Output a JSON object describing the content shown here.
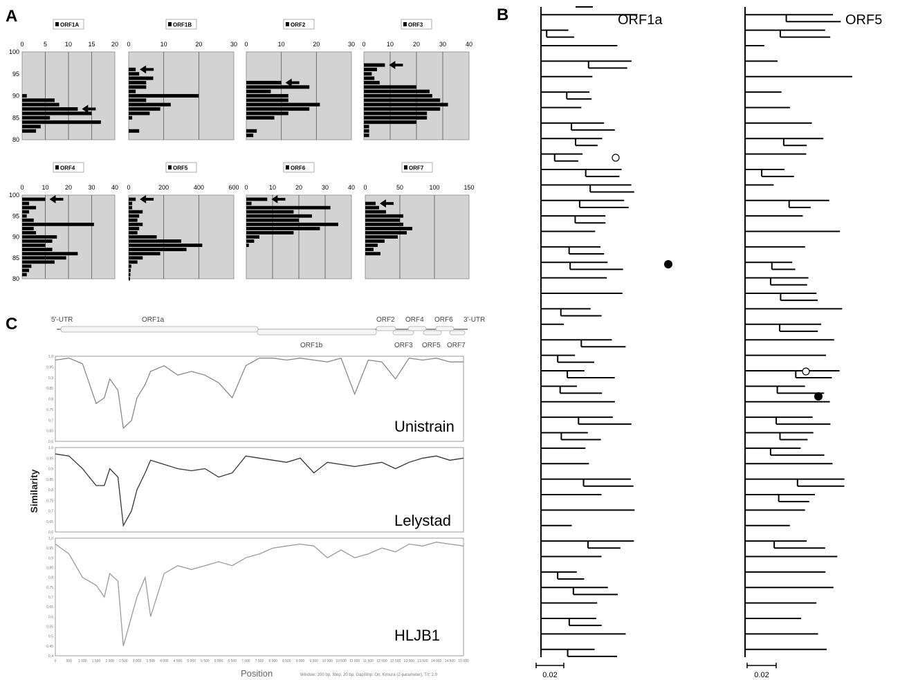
{
  "panels": {
    "a": "A",
    "b": "B",
    "c": "C"
  },
  "colors": {
    "plot_bg": "#d3d3d3",
    "bar": "#000000",
    "line_dark": "#333333",
    "line_mid": "#888888",
    "line_light": "#9a9a9a"
  },
  "chart_data": [
    {
      "type": "bar",
      "orientation": "horizontal",
      "title": "ORF1A",
      "xlim": [
        0,
        20
      ],
      "xticks": [
        0,
        5,
        10,
        15,
        20
      ],
      "ylim": [
        80,
        100
      ],
      "yticks": [
        80,
        85,
        90,
        95,
        100
      ],
      "y": [
        82,
        83,
        84,
        85,
        86,
        87,
        88,
        89,
        90
      ],
      "values": [
        3,
        4,
        17,
        6,
        15,
        12,
        8,
        7,
        1
      ]
    },
    {
      "type": "bar",
      "orientation": "horizontal",
      "title": "ORF1B",
      "xlim": [
        0,
        30
      ],
      "xticks": [
        0,
        10,
        20,
        30
      ],
      "ylim": [
        80,
        100
      ],
      "yticks": [],
      "y": [
        82,
        85,
        86,
        87,
        88,
        89,
        90,
        91,
        92,
        93,
        94,
        95,
        96
      ],
      "values": [
        3,
        1,
        6,
        9,
        12,
        5,
        20,
        2,
        5,
        5,
        7,
        3,
        2
      ]
    },
    {
      "type": "bar",
      "orientation": "horizontal",
      "title": "ORF2",
      "xlim": [
        0,
        30
      ],
      "xticks": [
        0,
        10,
        20,
        30
      ],
      "ylim": [
        80,
        100
      ],
      "yticks": [],
      "y": [
        81,
        82,
        85,
        86,
        87,
        88,
        89,
        90,
        91,
        92,
        93
      ],
      "values": [
        2,
        3,
        8,
        12,
        18,
        21,
        12,
        12,
        7,
        18,
        10
      ]
    },
    {
      "type": "bar",
      "orientation": "horizontal",
      "title": "ORF3",
      "xlim": [
        0,
        40
      ],
      "xticks": [
        0,
        10,
        20,
        30,
        40
      ],
      "ylim": [
        80,
        100
      ],
      "yticks": [],
      "y": [
        81,
        82,
        83,
        84,
        85,
        86,
        87,
        88,
        89,
        90,
        91,
        92,
        93,
        94,
        95,
        96,
        97
      ],
      "values": [
        2,
        2,
        2,
        20,
        24,
        24,
        29,
        32,
        29,
        26,
        25,
        20,
        6,
        4,
        3,
        5,
        8
      ]
    },
    {
      "type": "bar",
      "orientation": "horizontal",
      "title": "ORF4",
      "xlim": [
        0,
        40
      ],
      "xticks": [
        0,
        10,
        20,
        30,
        40
      ],
      "ylim": [
        80,
        100
      ],
      "yticks": [
        80,
        85,
        90,
        95,
        100
      ],
      "y": [
        81,
        82,
        83,
        84,
        85,
        86,
        87,
        88,
        89,
        90,
        91,
        92,
        93,
        94,
        95,
        96,
        97,
        98,
        99
      ],
      "values": [
        2,
        3,
        4,
        14,
        19,
        24,
        13,
        10,
        13,
        15,
        6,
        5,
        31,
        5,
        2,
        3,
        6,
        3,
        10
      ]
    },
    {
      "type": "bar",
      "orientation": "horizontal",
      "title": "ORF5",
      "xlim": [
        0,
        600
      ],
      "xticks": [
        0,
        200,
        400,
        600
      ],
      "ylim": [
        80,
        100
      ],
      "yticks": [],
      "y": [
        80,
        81,
        82,
        83,
        84,
        85,
        86,
        87,
        88,
        89,
        90,
        91,
        92,
        93,
        94,
        95,
        96,
        97,
        98,
        99
      ],
      "values": [
        8,
        10,
        12,
        15,
        50,
        80,
        180,
        330,
        420,
        300,
        160,
        50,
        60,
        80,
        50,
        60,
        80,
        20,
        20,
        40
      ]
    },
    {
      "type": "bar",
      "orientation": "horizontal",
      "title": "ORF6",
      "xlim": [
        0,
        40
      ],
      "xticks": [
        0,
        10,
        20,
        30,
        40
      ],
      "ylim": [
        80,
        100
      ],
      "yticks": [],
      "y": [
        88,
        89,
        90,
        91,
        92,
        93,
        94,
        95,
        96,
        97,
        98,
        99
      ],
      "values": [
        1,
        3,
        5,
        18,
        28,
        35,
        20,
        25,
        18,
        32,
        2,
        8
      ]
    },
    {
      "type": "bar",
      "orientation": "horizontal",
      "title": "ORF7",
      "xlim": [
        0,
        150
      ],
      "xticks": [
        0,
        50,
        100,
        150
      ],
      "ylim": [
        80,
        100
      ],
      "yticks": [],
      "y": [
        86,
        87,
        88,
        89,
        90,
        91,
        92,
        93,
        94,
        95,
        96,
        97,
        98
      ],
      "values": [
        22,
        12,
        18,
        28,
        47,
        60,
        68,
        55,
        50,
        55,
        30,
        20,
        15
      ]
    },
    {
      "type": "line",
      "title": "Unistrain",
      "ylim": [
        0.55,
        1.0
      ],
      "yticks": [
        "1,0",
        "0,95",
        "0,9",
        "0,85",
        "0,8",
        "0,75",
        "0,7",
        "0,65",
        "0,6"
      ],
      "xlim": [
        0,
        15000
      ],
      "x": [
        0,
        500,
        1000,
        1500,
        1800,
        2000,
        2300,
        2500,
        2800,
        3000,
        3300,
        3500,
        4000,
        4500,
        5000,
        5500,
        6000,
        6500,
        7000,
        7500,
        8000,
        8500,
        9000,
        9500,
        10000,
        10500,
        11000,
        11500,
        12000,
        12500,
        13000,
        13500,
        14000,
        14500,
        15000
      ],
      "y": [
        0.98,
        0.99,
        0.96,
        0.75,
        0.78,
        0.88,
        0.82,
        0.62,
        0.66,
        0.78,
        0.85,
        0.92,
        0.95,
        0.9,
        0.92,
        0.9,
        0.86,
        0.78,
        0.95,
        0.99,
        0.99,
        0.98,
        0.99,
        0.98,
        0.97,
        0.99,
        0.8,
        0.98,
        0.97,
        0.88,
        0.99,
        0.98,
        0.99,
        0.97,
        0.97
      ]
    },
    {
      "type": "line",
      "title": "Lelystad",
      "ylim": [
        0.6,
        1.0
      ],
      "yticks": [
        "1,0",
        "0,95",
        "0,9",
        "0,85",
        "0,8",
        "0,75",
        "0,7",
        "0,65",
        "0,6"
      ],
      "xlim": [
        0,
        15000
      ],
      "x": [
        0,
        500,
        1000,
        1500,
        1800,
        2000,
        2300,
        2500,
        2800,
        3000,
        3300,
        3500,
        4000,
        4500,
        5000,
        5500,
        6000,
        6500,
        7000,
        7500,
        8000,
        8500,
        9000,
        9500,
        10000,
        10500,
        11000,
        11500,
        12000,
        12500,
        13000,
        13500,
        14000,
        14500,
        15000
      ],
      "y": [
        0.97,
        0.96,
        0.9,
        0.82,
        0.82,
        0.9,
        0.86,
        0.63,
        0.7,
        0.8,
        0.88,
        0.94,
        0.92,
        0.9,
        0.89,
        0.9,
        0.86,
        0.88,
        0.96,
        0.95,
        0.94,
        0.93,
        0.95,
        0.88,
        0.93,
        0.92,
        0.91,
        0.92,
        0.93,
        0.9,
        0.93,
        0.95,
        0.96,
        0.94,
        0.95
      ]
    },
    {
      "type": "line",
      "title": "HLJB1",
      "ylim": [
        0.4,
        1.0
      ],
      "yticks": [
        "1,0",
        "0,95",
        "0,9",
        "0,85",
        "0,8",
        "0,75",
        "0,7",
        "0,65",
        "0,6",
        "0,55",
        "0,5",
        "0,45",
        "0,4"
      ],
      "xlim": [
        0,
        15000
      ],
      "xticks": [
        "0",
        "500",
        "1 000",
        "1 500",
        "2 000",
        "2 500",
        "3 000",
        "3 500",
        "4 000",
        "4 500",
        "5 000",
        "5 500",
        "6 000",
        "6 500",
        "7 000",
        "7 500",
        "8 000",
        "8 500",
        "9 000",
        "9 500",
        "10 000",
        "10 500",
        "11 000",
        "11 500",
        "12 000",
        "12 500",
        "13 000",
        "13 500",
        "14 000",
        "14 500",
        "15 000"
      ],
      "x": [
        0,
        500,
        1000,
        1500,
        1800,
        2000,
        2300,
        2500,
        2800,
        3000,
        3300,
        3500,
        4000,
        4500,
        5000,
        5500,
        6000,
        6500,
        7000,
        7500,
        8000,
        8500,
        9000,
        9500,
        10000,
        10500,
        11000,
        11500,
        12000,
        12500,
        13000,
        13500,
        14000,
        14500,
        15000
      ],
      "y": [
        0.97,
        0.92,
        0.8,
        0.76,
        0.7,
        0.82,
        0.78,
        0.45,
        0.6,
        0.7,
        0.8,
        0.6,
        0.82,
        0.86,
        0.84,
        0.86,
        0.88,
        0.86,
        0.9,
        0.92,
        0.95,
        0.96,
        0.97,
        0.96,
        0.9,
        0.94,
        0.9,
        0.92,
        0.95,
        0.93,
        0.97,
        0.96,
        0.98,
        0.97,
        0.96
      ]
    }
  ],
  "orf_arrows": [
    {
      "chart": 0,
      "y": 87
    },
    {
      "chart": 1,
      "y": 96
    },
    {
      "chart": 2,
      "y": 93
    },
    {
      "chart": 3,
      "y": 97
    },
    {
      "chart": 4,
      "y": 99
    },
    {
      "chart": 5,
      "y": 99
    },
    {
      "chart": 6,
      "y": 99
    },
    {
      "chart": 7,
      "y": 98
    }
  ],
  "genome_map": {
    "utr5": "5'-UTR",
    "orf1a": "ORF1a",
    "orf1b": "ORF1b",
    "orf2": "ORF2",
    "orf3": "ORF3",
    "orf4": "ORF4",
    "orf5": "ORF5",
    "orf6": "ORF6",
    "orf7": "ORF7",
    "utr3": "3'-UTR"
  },
  "similarity": {
    "ylabel": "Similarity",
    "xlabel": "Position",
    "footer": "Window: 200 bp, Step: 20 bp, GapStrip: On, Kimura (2-parameter), T/t: 2,0"
  },
  "trees": {
    "orf1a_title": "ORF1a",
    "orf5_title": "ORF5",
    "scale_left": "0.02",
    "scale_right": "0.02"
  }
}
